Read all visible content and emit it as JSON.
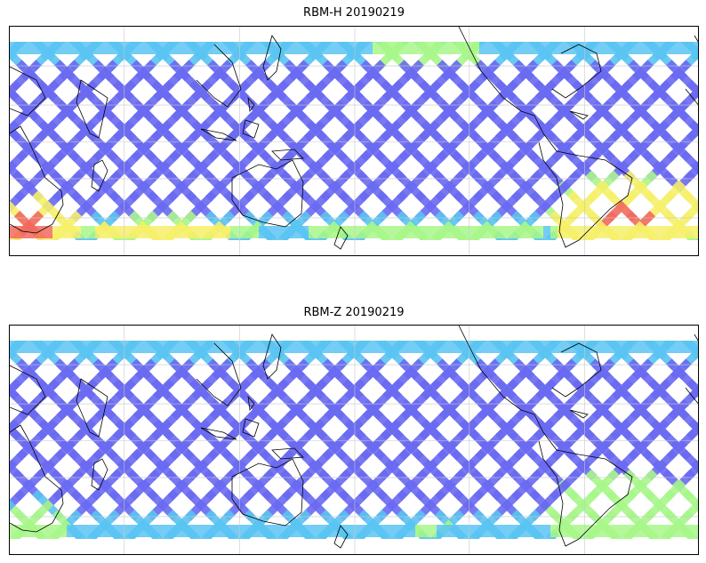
{
  "panels": [
    {
      "title": "RBM-H 20190219",
      "colormap": "jet",
      "hotspots": [
        {
          "region": "southern-africa-coast",
          "level": 0.95
        },
        {
          "region": "southern-indian-ocean-belt",
          "level": 0.75
        },
        {
          "region": "south-atlantic-argentina",
          "level": 0.9
        },
        {
          "region": "south-pacific-belt",
          "level": 0.55
        },
        {
          "region": "north-pacific-east",
          "level": 0.5
        }
      ]
    },
    {
      "title": "RBM-Z 20190219",
      "colormap": "jet",
      "hotspots": [
        {
          "region": "southern-africa-coast",
          "level": 0.45
        },
        {
          "region": "south-atlantic-argentina",
          "level": 0.62
        },
        {
          "region": "south-pacific-belt",
          "level": 0.38
        }
      ]
    }
  ],
  "colors": {
    "low": "#6a6af2",
    "mid_low": "#5ac4f2",
    "mid": "#a8f78a",
    "mid_high": "#f6f06a",
    "high": "#f26a5e",
    "coastline": "#000000",
    "gridline": "#c8c8c8"
  }
}
